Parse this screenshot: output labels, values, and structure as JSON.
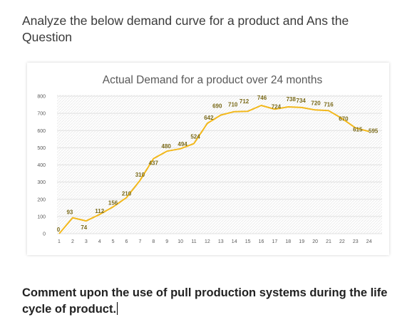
{
  "intro_text": "Analyze the below demand curve for a product and Ans the Question",
  "question_text": "Comment upon the use of pull production systems during the life cycle of product.",
  "chart_data": {
    "type": "line",
    "title": "Actual Demand for a product over 24 months",
    "xlabel": "",
    "ylabel": "",
    "x": [
      1,
      2,
      3,
      4,
      5,
      6,
      7,
      8,
      9,
      10,
      11,
      12,
      13,
      14,
      15,
      16,
      17,
      18,
      19,
      20,
      21,
      22,
      23,
      24
    ],
    "series": [
      {
        "values": [
          0,
          93,
          74,
          112,
          156,
          210,
          310,
          437,
          480,
          494,
          524,
          642,
          690,
          710,
          712,
          746,
          724,
          738,
          734,
          720,
          716,
          670,
          615,
          595
        ],
        "color": "#f2b81c"
      }
    ],
    "ylim": [
      0,
      800
    ],
    "yticks": [
      0,
      100,
      200,
      300,
      400,
      500,
      600,
      700,
      800
    ],
    "grid": true,
    "data_labels": true,
    "label_color": "#7a6a1a"
  }
}
